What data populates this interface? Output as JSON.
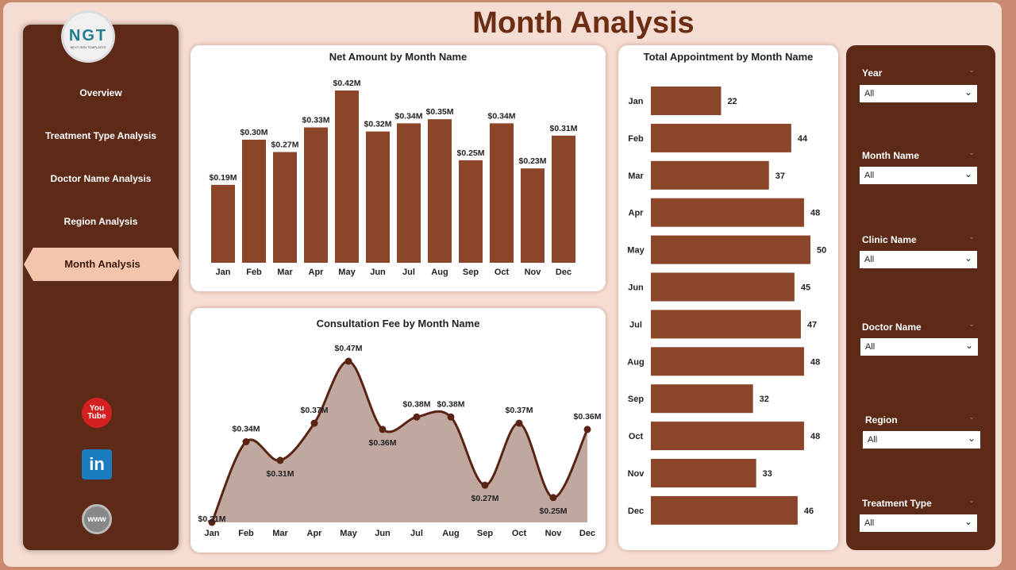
{
  "title": "Month Analysis",
  "logo": {
    "text": "NGT",
    "sub": "NEXT GEN TEMPLATES"
  },
  "nav": [
    {
      "label": "Overview"
    },
    {
      "label": "Treatment Type Analysis"
    },
    {
      "label": "Doctor Name Analysis"
    },
    {
      "label": "Region Analysis"
    },
    {
      "label": "Month Analysis",
      "active": true
    }
  ],
  "social": {
    "youtube": "You Tube",
    "linkedin": "in",
    "web": "www"
  },
  "colors": {
    "bar": "#8b4529",
    "sidebar": "#5c2a16",
    "line": "#5a2414",
    "area": "#c0a8a0"
  },
  "filters": [
    {
      "label": "Year",
      "value": "All"
    },
    {
      "label": "Month Name",
      "value": "All"
    },
    {
      "label": "Clinic Name",
      "value": "All"
    },
    {
      "label": "Doctor Name",
      "value": "All"
    },
    {
      "label": "Region",
      "value": "All"
    },
    {
      "label": "Treatment Type",
      "value": "All"
    }
  ],
  "chart_data": [
    {
      "type": "bar",
      "title": "Net Amount by Month Name",
      "categories": [
        "Jan",
        "Feb",
        "Mar",
        "Apr",
        "May",
        "Jun",
        "Jul",
        "Aug",
        "Sep",
        "Oct",
        "Nov",
        "Dec"
      ],
      "values": [
        0.19,
        0.3,
        0.27,
        0.33,
        0.42,
        0.32,
        0.34,
        0.35,
        0.25,
        0.34,
        0.23,
        0.31
      ],
      "labels": [
        "$0.19M",
        "$0.30M",
        "$0.27M",
        "$0.33M",
        "$0.42M",
        "$0.32M",
        "$0.34M",
        "$0.35M",
        "$0.25M",
        "$0.34M",
        "$0.23M",
        "$0.31M"
      ],
      "ylim": [
        0,
        0.42
      ]
    },
    {
      "type": "area",
      "title": "Consultation Fee by Month Name",
      "categories": [
        "Jan",
        "Feb",
        "Mar",
        "Apr",
        "May",
        "Jun",
        "Jul",
        "Aug",
        "Sep",
        "Oct",
        "Nov",
        "Dec"
      ],
      "values": [
        0.21,
        0.34,
        0.31,
        0.37,
        0.47,
        0.36,
        0.38,
        0.38,
        0.27,
        0.37,
        0.25,
        0.36
      ],
      "labels": [
        "$0.21M",
        "$0.34M",
        "$0.31M",
        "$0.37M",
        "$0.47M",
        "$0.36M",
        "$0.38M",
        "$0.38M",
        "$0.27M",
        "$0.37M",
        "$0.25M",
        "$0.36M"
      ],
      "ylim": [
        0.21,
        0.47
      ]
    },
    {
      "type": "bar",
      "orientation": "horizontal",
      "title": "Total Appointment by Month Name",
      "categories": [
        "Jan",
        "Feb",
        "Mar",
        "Apr",
        "May",
        "Jun",
        "Jul",
        "Aug",
        "Sep",
        "Oct",
        "Nov",
        "Dec"
      ],
      "values": [
        22,
        44,
        37,
        48,
        50,
        45,
        47,
        48,
        32,
        48,
        33,
        46
      ],
      "xlim": [
        0,
        50
      ]
    }
  ]
}
